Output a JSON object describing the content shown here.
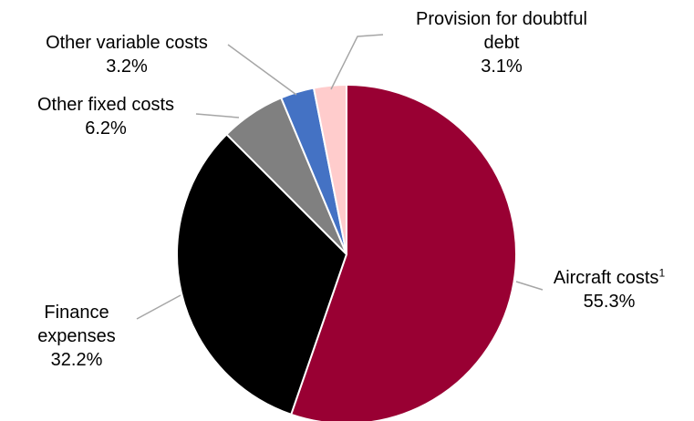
{
  "chart_data": {
    "type": "pie",
    "slices": [
      {
        "label": "Aircraft costs",
        "superscript": "1",
        "value": 55.3,
        "value_label": "55.3%",
        "color": "#990033"
      },
      {
        "label": "Finance expenses",
        "label_lines": [
          "Finance",
          "expenses"
        ],
        "value": 32.2,
        "value_label": "32.2%",
        "color": "#000000"
      },
      {
        "label": "Other fixed costs",
        "value": 6.2,
        "value_label": "6.2%",
        "color": "#808080"
      },
      {
        "label": "Other variable costs",
        "value": 3.2,
        "value_label": "3.2%",
        "color": "#4472C4"
      },
      {
        "label": "Provision for doubtful debt",
        "label_lines": [
          "Provision for doubtful",
          "debt"
        ],
        "value": 3.1,
        "value_label": "3.1%",
        "color": "#FFCCCC"
      }
    ],
    "start_angle": "12 o'clock",
    "direction": "clockwise",
    "leader_line_color": "#A6A6A6"
  }
}
